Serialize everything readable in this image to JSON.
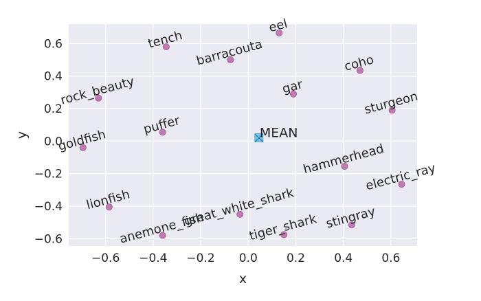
{
  "chart_data": {
    "type": "scatter",
    "title": "",
    "xlabel": "x",
    "ylabel": "y",
    "xlim": [
      -0.755,
      0.71
    ],
    "ylim": [
      -0.645,
      0.72
    ],
    "xticks": [
      -0.6,
      -0.4,
      -0.2,
      0.0,
      0.2,
      0.4,
      0.6
    ],
    "xtick_labels": [
      "−0.6",
      "−0.4",
      "−0.2",
      "0.0",
      "0.2",
      "0.4",
      "0.6"
    ],
    "yticks": [
      -0.6,
      -0.4,
      -0.2,
      0.0,
      0.2,
      0.4,
      0.6
    ],
    "ytick_labels": [
      "−0.6",
      "−0.4",
      "−0.2",
      "0.0",
      "0.2",
      "0.4",
      "0.6"
    ],
    "grid": true,
    "point_color": "#c27bb0",
    "point_edge_color": "#a05c92",
    "mean_color": "#5bb8dc",
    "points": [
      {
        "label": "tench",
        "x": -0.345,
        "y": 0.58
      },
      {
        "label": "eel",
        "x": 0.13,
        "y": 0.665
      },
      {
        "label": "barracouta",
        "x": -0.075,
        "y": 0.5
      },
      {
        "label": "coho",
        "x": 0.47,
        "y": 0.435
      },
      {
        "label": "rock_beauty",
        "x": -0.63,
        "y": 0.265
      },
      {
        "label": "gar",
        "x": 0.19,
        "y": 0.29
      },
      {
        "label": "sturgeon",
        "x": 0.605,
        "y": 0.19
      },
      {
        "label": "goldfish",
        "x": -0.695,
        "y": -0.04
      },
      {
        "label": "puffer",
        "x": -0.36,
        "y": 0.055
      },
      {
        "label": "hammerhead",
        "x": 0.405,
        "y": -0.155
      },
      {
        "label": "electric_ray",
        "x": 0.645,
        "y": -0.265
      },
      {
        "label": "lionfish",
        "x": -0.585,
        "y": -0.405
      },
      {
        "label": "great_white_shark",
        "x": -0.035,
        "y": -0.45
      },
      {
        "label": "anemone_fish",
        "x": -0.36,
        "y": -0.58
      },
      {
        "label": "tiger_shark",
        "x": 0.15,
        "y": -0.575
      },
      {
        "label": "stingray",
        "x": 0.435,
        "y": -0.515
      }
    ],
    "mean": {
      "label": "MEAN",
      "x": 0.045,
      "y": 0.02
    }
  }
}
